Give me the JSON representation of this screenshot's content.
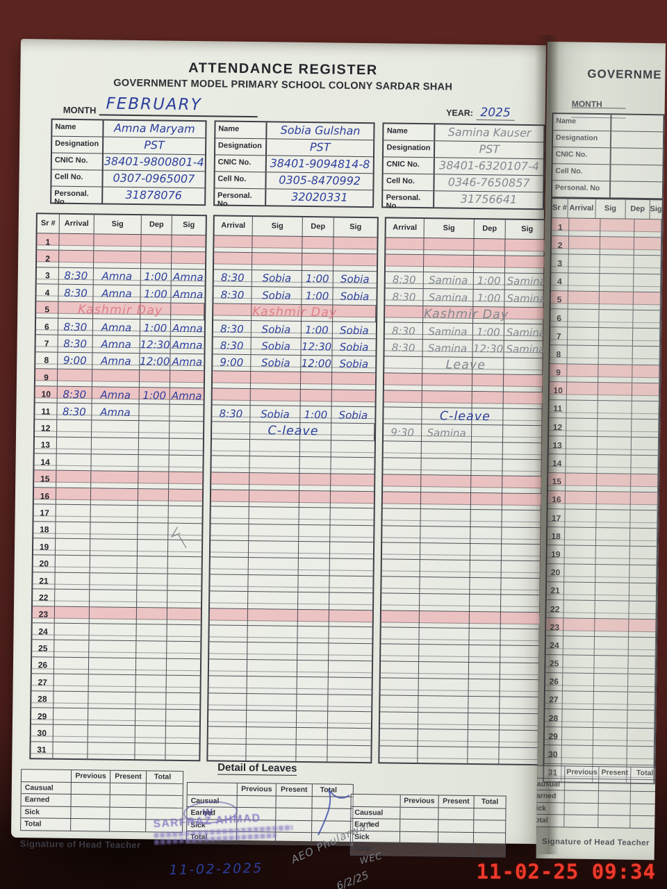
{
  "header": {
    "title": "ATTENDANCE REGISTER",
    "school_line": "GOVERNMENT MODEL PRIMARY SCHOOL COLONY SARDAR SHAH",
    "month_label": "MONTH",
    "month_value": "FEBRUARY",
    "year_label": "YEAR:",
    "year_value": "2025"
  },
  "info_labels": [
    "Name",
    "Designation",
    "CNIC No.",
    "Cell No.",
    "Personal. No"
  ],
  "attendance_columns": {
    "sr": "Sr #",
    "arrival": "Arrival",
    "sig": "Sig",
    "dep": "Dep",
    "sig2": "Sig"
  },
  "row_count": 31,
  "pink_rows": [
    1,
    2,
    5,
    9,
    10,
    15,
    16,
    23
  ],
  "teachers": [
    {
      "info": [
        "Amna Maryam",
        "PST",
        "38401-9800801-4",
        "0307-0965007",
        "31878076"
      ],
      "ink": "blue",
      "entries": {
        "3": {
          "a": "8:30",
          "s": "Amna",
          "d": "1:00",
          "s2": "Amna"
        },
        "4": {
          "a": "8:30",
          "s": "Amna",
          "d": "1:00",
          "s2": "Amna"
        },
        "5": {
          "note": "Kashmir Day",
          "ink": "pink"
        },
        "6": {
          "a": "8:30",
          "s": "Amna",
          "d": "1:00",
          "s2": "Amna"
        },
        "7": {
          "a": "8:30",
          "s": "Amna",
          "d": "12:30",
          "s2": "Amna"
        },
        "8": {
          "a": "9:00",
          "s": "Amna",
          "d": "12:00",
          "s2": "Amna"
        },
        "10": {
          "a": "8:30",
          "s": "Amna",
          "d": "1:00",
          "s2": "Amna"
        },
        "11": {
          "a": "8:30",
          "s": "Amna",
          "d": "",
          "s2": ""
        }
      }
    },
    {
      "info": [
        "Sobia Gulshan",
        "PST",
        "38401-9094814-8",
        "0305-8470992",
        "32020331"
      ],
      "ink": "blue",
      "entries": {
        "3": {
          "a": "8:30",
          "s": "Sobia",
          "d": "1:00",
          "s2": "Sobia"
        },
        "4": {
          "a": "8:30",
          "s": "Sobia",
          "d": "1:00",
          "s2": "Sobia"
        },
        "5": {
          "note": "Kashmir Day",
          "ink": "pink"
        },
        "6": {
          "a": "8:30",
          "s": "Sobia",
          "d": "1:00",
          "s2": "Sobia"
        },
        "7": {
          "a": "8:30",
          "s": "Sobia",
          "d": "12:30",
          "s2": "Sobia"
        },
        "8": {
          "a": "9:00",
          "s": "Sobia",
          "d": "12:00",
          "s2": "Sobia"
        },
        "11": {
          "a": "8:30",
          "s": "Sobia",
          "d": "1:00",
          "s2": "Sobia"
        },
        "12": {
          "note": "C-leave",
          "ink": "blue"
        }
      }
    },
    {
      "info": [
        "Samina Kauser",
        "PST",
        "38401-6320107-4",
        "0346-7650857",
        "31756641"
      ],
      "ink": "grey",
      "entries": {
        "3": {
          "a": "8:30",
          "s": "Samina",
          "d": "1:00",
          "s2": "Samina"
        },
        "4": {
          "a": "8:30",
          "s": "Samina",
          "d": "1:00",
          "s2": "Samina"
        },
        "5": {
          "note": "Kashmir Day",
          "ink": "grey"
        },
        "6": {
          "a": "8:30",
          "s": "Samina",
          "d": "1:00",
          "s2": "Samina"
        },
        "7": {
          "a": "8:30",
          "s": "Samina",
          "d": "12:30",
          "s2": "Samina"
        },
        "8": {
          "note": "Leave",
          "ink": "grey"
        },
        "11": {
          "note": "C-leave",
          "ink": "blue"
        },
        "12": {
          "a": "9:30",
          "s": "Samina",
          "d": "",
          "s2": ""
        }
      }
    }
  ],
  "leaves": {
    "title": "Detail of Leaves",
    "col_headers": [
      "Previous",
      "Present",
      "Total"
    ],
    "row_headers": [
      "Causual",
      "Earned",
      "Sick",
      "Total"
    ]
  },
  "footer": {
    "signature_label": "Signature of Head Teacher",
    "stamp_text": "SARFRAZ AHMAD",
    "stamp_date": "11-02-2025",
    "pencil_note": "AEO Phularwan",
    "pencil_note2": "WEC",
    "pencil_date": "6/2/25"
  },
  "right_page": {
    "title_fragment": "GOVERNME",
    "month_label": "MONTH",
    "signature_label": "Signature of Head Teacher"
  },
  "camera_timestamp": "11-02-25  09:34",
  "colors": {
    "ink_blue": "#2d3e9c",
    "ink_grey": "#82888f",
    "ink_pink": "#dd808a",
    "highlight_pink": "rgba(236,160,166,0.55)",
    "stamp_purple": "#8478c2",
    "timestamp_red": "#ee3a2c"
  }
}
